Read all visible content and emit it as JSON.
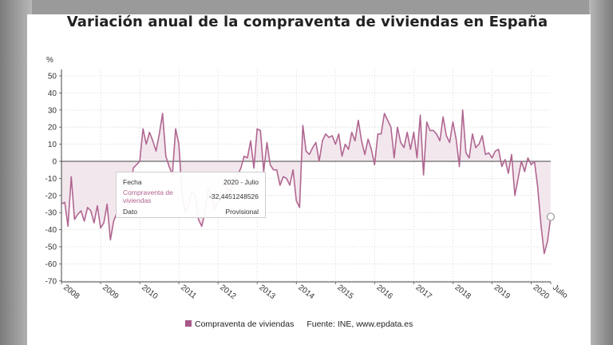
{
  "title": "Variación anual de la compraventa de viviendas en España",
  "legend": {
    "series_label": "Compraventa de viviendas",
    "source": "Fuente: INE, www.epdata.es"
  },
  "tooltip": {
    "date_key": "Fecha",
    "date_value": "2020 - Julio",
    "series_key": "Compraventa de viviendas",
    "series_value": "-32,4451248526",
    "status_key": "Dato",
    "status_value": "Provisional"
  },
  "colors": {
    "line": "#b06690",
    "area": "#f3e7ee",
    "grid": "#d9d9d9",
    "zero_line": "#444444"
  },
  "chart_data": {
    "type": "line",
    "title": "Variación anual de la compraventa de viviendas en España",
    "ylabel": "%",
    "xlabel": "",
    "ylim": [
      -70,
      55
    ],
    "yticks": [
      50,
      40,
      30,
      20,
      10,
      0,
      -10,
      -20,
      -30,
      -40,
      -50,
      -60,
      -70
    ],
    "x_ticks": [
      "2008",
      "2009",
      "2010",
      "2011",
      "2012",
      "2013",
      "2014",
      "2015",
      "2016",
      "2017",
      "2018",
      "2019",
      "2020",
      "Julio"
    ],
    "x_start": "2008-01",
    "x_end": "2020-07",
    "series": [
      {
        "name": "Compraventa de viviendas",
        "values": [
          -25,
          -24,
          -38,
          -9,
          -34,
          -31,
          -29,
          -35,
          -27,
          -29,
          -36,
          -26,
          -39,
          -36,
          -25,
          -46,
          -35,
          -30,
          -32,
          -28,
          -26,
          -24,
          -4,
          -2,
          0,
          19,
          10,
          17,
          12,
          6,
          16,
          28,
          3,
          -3,
          -8,
          19,
          10,
          -20,
          -30,
          -25,
          -18,
          -20,
          -34,
          -38,
          -30,
          -16,
          -20,
          -28,
          -24,
          -22,
          -20,
          -16,
          -18,
          -10,
          -8,
          -4,
          3,
          2,
          12,
          -4,
          19,
          18,
          -6,
          11,
          -2,
          -5,
          -5,
          -14,
          -9,
          -10,
          -14,
          -5,
          -23,
          -27,
          21,
          6,
          4,
          8,
          11,
          0,
          12,
          16,
          14,
          15,
          10,
          16,
          3,
          10,
          7,
          17,
          12,
          24,
          12,
          4,
          13,
          7,
          -2,
          16,
          16,
          28,
          24,
          20,
          2,
          20,
          11,
          8,
          17,
          7,
          17,
          2,
          27,
          -8,
          23,
          18,
          18,
          16,
          12,
          26,
          15,
          11,
          23,
          13,
          -3,
          30,
          5,
          2,
          16,
          8,
          10,
          15,
          4,
          5,
          2,
          6,
          7,
          -3,
          1,
          -7,
          4,
          -20,
          -10,
          0,
          -6,
          2,
          -2,
          0,
          -15,
          -37,
          -54,
          -47,
          -32.4451248526
        ]
      }
    ],
    "highlighted_point": {
      "x": "2020-07",
      "y": -32.4451248526
    }
  }
}
